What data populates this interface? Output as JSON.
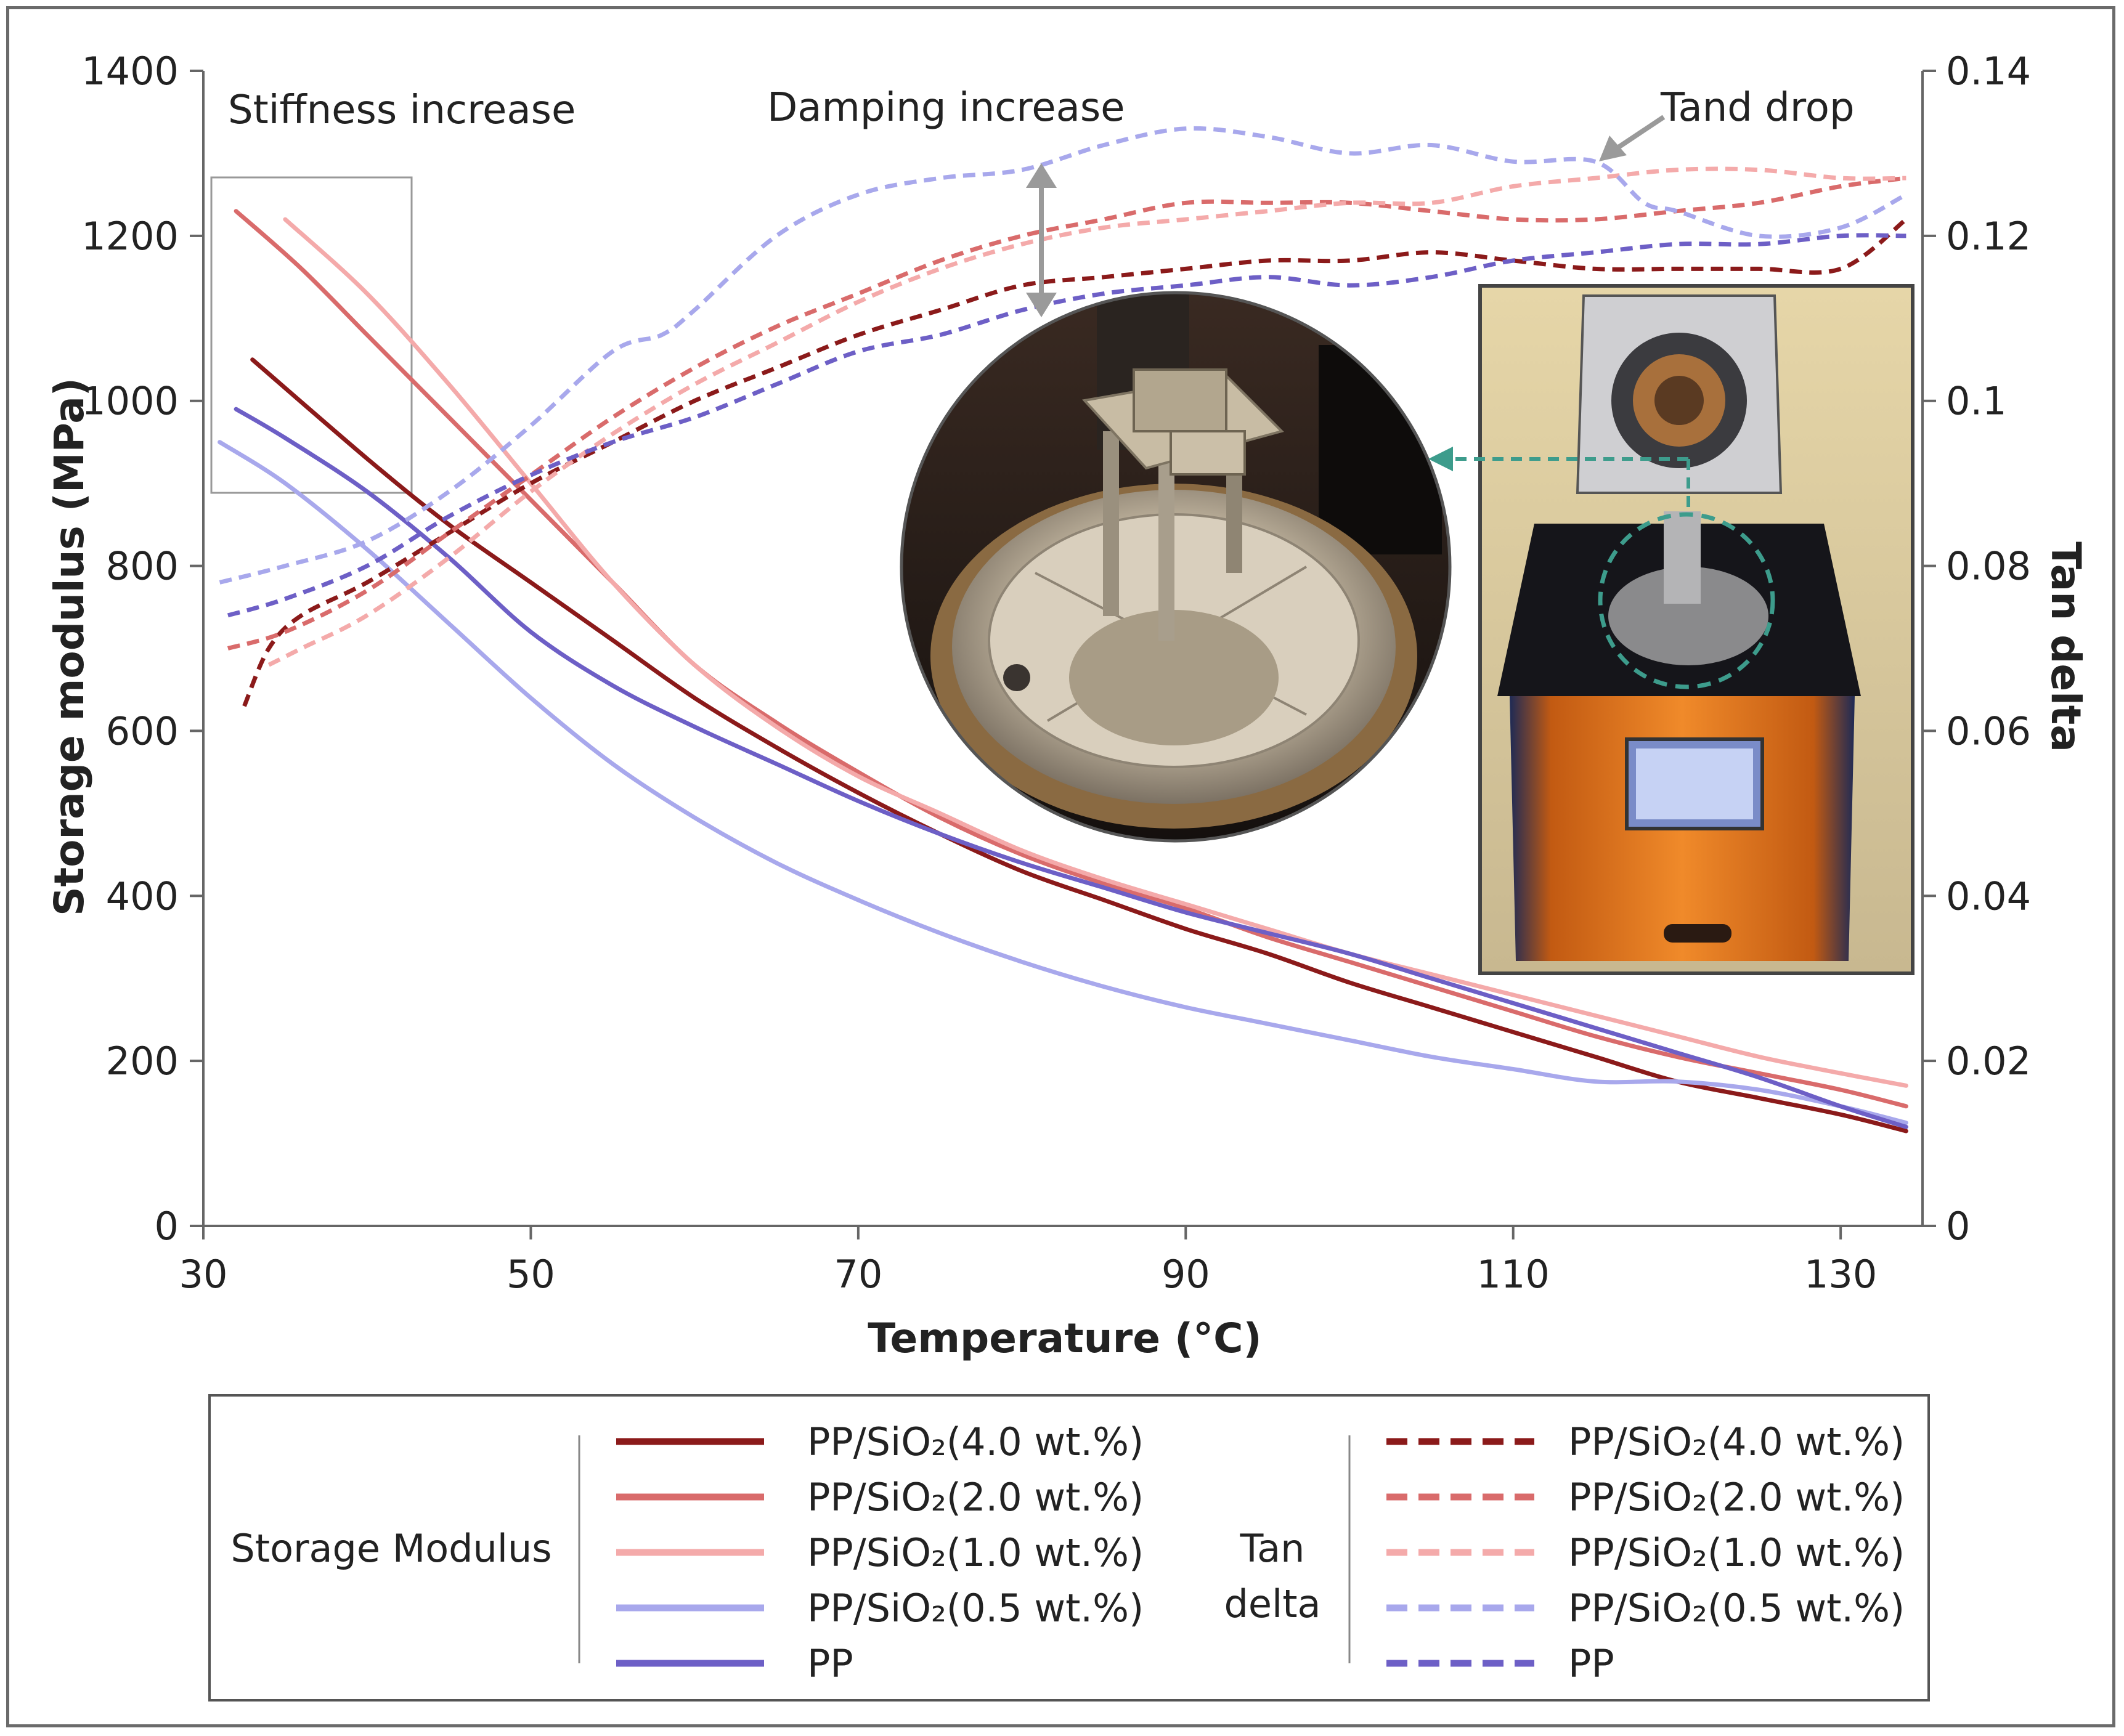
{
  "chart_data": {
    "type": "line",
    "xlabel": "Temperature (°C)",
    "ylabel": "Storage modulus (MPa)",
    "y2label": "Tan delta",
    "xlim": [
      30,
      135
    ],
    "ylim": [
      0,
      1400
    ],
    "y2lim": [
      0,
      0.14
    ],
    "x_ticks": [
      "30",
      "50",
      "70",
      "90",
      "110",
      "130"
    ],
    "y_ticks": [
      "0",
      "200",
      "400",
      "600",
      "800",
      "1000",
      "1200",
      "1400"
    ],
    "y2_ticks": [
      "0",
      "0.02",
      "0.04",
      "0.06",
      "0.08",
      "0.1",
      "0.12",
      "0.14"
    ],
    "grid": false,
    "annotations": {
      "stiffness": "Stiffness increase",
      "damping": "Damping increase",
      "tand_drop": "Tand drop"
    },
    "legend": {
      "position": "bottom",
      "group_storage": "Storage Modulus",
      "group_tan_line1": "Tan",
      "group_tan_line2": "delta"
    },
    "storage_series": [
      {
        "name": "PP/SiO₂(4.0 wt.%)",
        "color": "#8b1a1a",
        "x": [
          33,
          40,
          45,
          50,
          55,
          60,
          65,
          70,
          75,
          80,
          85,
          90,
          95,
          100,
          105,
          110,
          115,
          120,
          125,
          130,
          134
        ],
        "y": [
          1050,
          930,
          850,
          780,
          710,
          640,
          580,
          525,
          475,
          430,
          395,
          360,
          330,
          295,
          265,
          235,
          205,
          175,
          155,
          135,
          115
        ]
      },
      {
        "name": "PP/SiO₂(2.0 wt.%)",
        "color": "#d96b6b",
        "x": [
          32,
          36,
          40,
          45,
          50,
          55,
          60,
          65,
          70,
          75,
          80,
          85,
          90,
          95,
          100,
          105,
          110,
          115,
          120,
          125,
          130,
          134
        ],
        "y": [
          1230,
          1160,
          1080,
          980,
          880,
          780,
          680,
          610,
          550,
          495,
          450,
          415,
          385,
          350,
          320,
          290,
          260,
          230,
          205,
          185,
          165,
          145
        ]
      },
      {
        "name": "PP/SiO₂(1.0 wt.%)",
        "color": "#f4aaaa",
        "x": [
          35,
          40,
          45,
          50,
          55,
          60,
          65,
          70,
          75,
          80,
          85,
          90,
          95,
          100,
          105,
          110,
          115,
          120,
          125,
          130,
          134
        ],
        "y": [
          1220,
          1130,
          1020,
          900,
          780,
          680,
          605,
          545,
          500,
          455,
          420,
          390,
          360,
          330,
          305,
          280,
          255,
          230,
          205,
          185,
          170
        ]
      },
      {
        "name": "PP/SiO₂(0.5 wt.%)",
        "color": "#a8a8ec",
        "x": [
          31,
          35,
          40,
          45,
          50,
          55,
          60,
          65,
          70,
          75,
          80,
          85,
          90,
          95,
          100,
          105,
          110,
          115,
          120,
          125,
          130,
          134
        ],
        "y": [
          950,
          900,
          820,
          730,
          640,
          560,
          495,
          440,
          395,
          355,
          320,
          290,
          265,
          245,
          225,
          205,
          190,
          175,
          175,
          165,
          145,
          125
        ]
      },
      {
        "name": "PP",
        "color": "#6d5fc6",
        "x": [
          32,
          35,
          40,
          45,
          50,
          55,
          60,
          65,
          70,
          75,
          80,
          85,
          90,
          95,
          100,
          105,
          110,
          115,
          120,
          125,
          130,
          134
        ],
        "y": [
          990,
          955,
          890,
          810,
          720,
          655,
          605,
          560,
          515,
          475,
          440,
          410,
          380,
          355,
          330,
          300,
          270,
          240,
          210,
          180,
          145,
          120
        ]
      }
    ],
    "tan_series": [
      {
        "name": "PP/SiO₂(4.0 wt.%)",
        "color": "#8b1a1a",
        "x": [
          32.5,
          34,
          36,
          40,
          45,
          50,
          55,
          60,
          65,
          70,
          75,
          80,
          85,
          90,
          95,
          100,
          105,
          110,
          115,
          120,
          125,
          130,
          134
        ],
        "y": [
          0.063,
          0.07,
          0.074,
          0.078,
          0.084,
          0.09,
          0.095,
          0.1,
          0.104,
          0.108,
          0.111,
          0.114,
          0.115,
          0.116,
          0.117,
          0.117,
          0.118,
          0.117,
          0.116,
          0.116,
          0.116,
          0.116,
          0.122
        ]
      },
      {
        "name": "PP/SiO₂(2.0 wt.%)",
        "color": "#d96b6b",
        "x": [
          31.5,
          35,
          40,
          45,
          50,
          55,
          60,
          65,
          70,
          75,
          80,
          85,
          90,
          95,
          100,
          105,
          110,
          115,
          120,
          125,
          130,
          134
        ],
        "y": [
          0.07,
          0.072,
          0.077,
          0.084,
          0.091,
          0.098,
          0.104,
          0.109,
          0.113,
          0.117,
          0.12,
          0.122,
          0.124,
          0.124,
          0.124,
          0.123,
          0.122,
          0.122,
          0.123,
          0.124,
          0.126,
          0.127
        ]
      },
      {
        "name": "PP/SiO₂(1.0 wt.%)",
        "color": "#f4aaaa",
        "x": [
          34,
          36,
          40,
          45,
          50,
          55,
          60,
          65,
          70,
          75,
          80,
          85,
          90,
          95,
          100,
          105,
          110,
          115,
          120,
          125,
          130,
          134
        ],
        "y": [
          0.068,
          0.07,
          0.074,
          0.081,
          0.089,
          0.096,
          0.102,
          0.107,
          0.112,
          0.116,
          0.119,
          0.121,
          0.122,
          0.123,
          0.124,
          0.124,
          0.126,
          0.127,
          0.128,
          0.128,
          0.127,
          0.127
        ]
      },
      {
        "name": "PP/SiO₂(0.5 wt.%)",
        "color": "#a8a8ec",
        "x": [
          31,
          35,
          40,
          45,
          50,
          55,
          58,
          60,
          65,
          70,
          75,
          80,
          85,
          90,
          95,
          100,
          105,
          110,
          115,
          118,
          120,
          125,
          130,
          134
        ],
        "y": [
          0.078,
          0.08,
          0.083,
          0.089,
          0.097,
          0.106,
          0.108,
          0.111,
          0.12,
          0.125,
          0.127,
          0.128,
          0.131,
          0.133,
          0.132,
          0.13,
          0.131,
          0.129,
          0.129,
          0.124,
          0.123,
          0.12,
          0.121,
          0.125
        ]
      },
      {
        "name": "PP",
        "color": "#6d5fc6",
        "x": [
          31.5,
          35,
          40,
          45,
          50,
          55,
          60,
          65,
          70,
          75,
          80,
          85,
          90,
          95,
          100,
          105,
          110,
          115,
          120,
          125,
          130,
          134
        ],
        "y": [
          0.074,
          0.076,
          0.08,
          0.086,
          0.091,
          0.095,
          0.098,
          0.102,
          0.106,
          0.108,
          0.111,
          0.113,
          0.114,
          0.115,
          0.114,
          0.115,
          0.117,
          0.118,
          0.119,
          0.119,
          0.12,
          0.12
        ]
      }
    ]
  }
}
